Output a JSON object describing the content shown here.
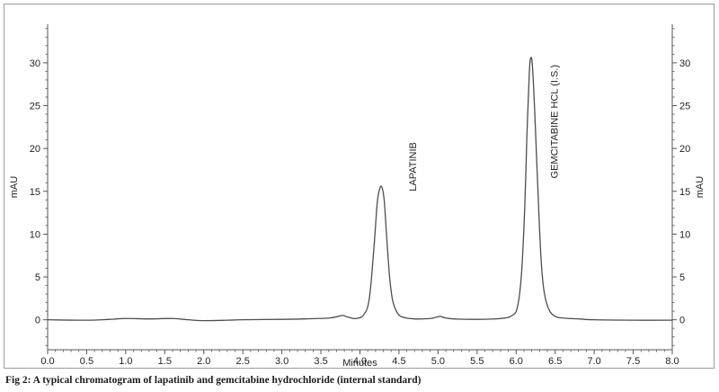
{
  "chart_data": {
    "type": "line",
    "xlabel": "Minutes",
    "ylabel": "mAU",
    "ylabel_right": "mAU",
    "xlim": [
      0.0,
      8.0
    ],
    "ylim": [
      -3.5,
      34.5
    ],
    "x_ticks": [
      "0.0",
      "0.5",
      "1.0",
      "1.5",
      "2.0",
      "2.5",
      "3.0",
      "3.5",
      "4.0",
      "4.5",
      "5.0",
      "5.5",
      "6.0",
      "6.5",
      "7.0",
      "7.5",
      "8.0"
    ],
    "y_ticks": [
      "0",
      "5",
      "10",
      "15",
      "20",
      "25",
      "30"
    ],
    "grid": false,
    "peaks": [
      {
        "retention_time": 3.78,
        "height": 0.5
      },
      {
        "retention_time": 4.28,
        "height": 15.5
      },
      {
        "retention_time": 5.03,
        "height": 0.4
      },
      {
        "retention_time": 6.19,
        "height": 30.6
      }
    ],
    "series": [
      {
        "x": [
          0.0,
          0.5,
          0.8,
          1.0,
          1.3,
          1.6,
          1.8,
          2.0,
          2.3,
          2.5,
          3.0,
          3.3,
          3.6,
          3.7,
          3.78,
          3.85,
          3.95,
          4.05,
          4.12,
          4.18,
          4.22,
          4.25,
          4.28,
          4.31,
          4.34,
          4.38,
          4.42,
          4.48,
          4.55,
          4.7,
          4.9,
          4.98,
          5.03,
          5.08,
          5.2,
          5.5,
          5.8,
          5.95,
          6.02,
          6.07,
          6.11,
          6.14,
          6.17,
          6.19,
          6.21,
          6.24,
          6.28,
          6.32,
          6.36,
          6.42,
          6.5,
          6.6,
          6.8,
          7.0,
          7.5,
          8.0
        ],
        "y": [
          0.0,
          -0.05,
          0.05,
          0.15,
          0.1,
          0.15,
          0.0,
          -0.1,
          -0.05,
          0.0,
          0.05,
          0.1,
          0.2,
          0.35,
          0.5,
          0.3,
          0.15,
          0.6,
          2.5,
          8.5,
          13.5,
          15.2,
          15.5,
          14.0,
          10.0,
          5.0,
          2.2,
          0.8,
          0.3,
          0.1,
          0.15,
          0.3,
          0.4,
          0.25,
          0.1,
          0.05,
          0.15,
          0.5,
          1.6,
          5.5,
          13.0,
          22.0,
          29.0,
          30.6,
          29.5,
          24.0,
          15.0,
          7.0,
          3.2,
          1.2,
          0.4,
          0.2,
          0.1,
          0.0,
          -0.05,
          -0.05
        ]
      }
    ],
    "annotations": [
      {
        "text": "LAPATINIB",
        "x": 4.72,
        "y": 15.0
      },
      {
        "text": "GEMCITABINE HCL (I.S.)",
        "x": 6.53,
        "y": 16.5
      }
    ],
    "line_color": "#4d4d4d",
    "axis_color": "#555555"
  },
  "caption": "Fig 2: A typical chromatogram of lapatinib and gemcitabine hydrochloride (internal standard)"
}
